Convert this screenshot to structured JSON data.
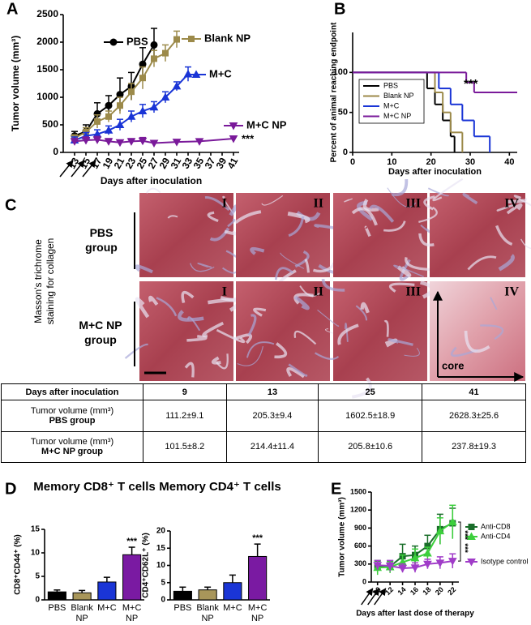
{
  "panel_labels": [
    "A",
    "B",
    "C",
    "D",
    "E"
  ],
  "chart_data": [
    {
      "type": "line",
      "y_label": "Tumor volume (mm³)",
      "x_label": "Days after inoculation",
      "xlim": [
        11,
        42
      ],
      "xticks": [
        13,
        15,
        17,
        19,
        21,
        23,
        25,
        27,
        29,
        31,
        33,
        35,
        37,
        39,
        41
      ],
      "ylim": [
        0,
        2500
      ],
      "yticks": [
        0,
        500,
        1000,
        1500,
        2000,
        2500
      ],
      "annotation": "***",
      "series": [
        {
          "name": "PBS",
          "color": "#000000",
          "marker": "circle",
          "x": [
            13,
            15,
            17,
            19,
            21,
            23,
            25,
            27
          ],
          "values": [
            300,
            380,
            700,
            850,
            1050,
            1200,
            1600,
            1950
          ],
          "errors": [
            80,
            120,
            200,
            180,
            300,
            250,
            300,
            300
          ]
        },
        {
          "name": "Blank NP",
          "color": "#9c8a4a",
          "marker": "square",
          "x": [
            13,
            15,
            17,
            19,
            21,
            23,
            25,
            27,
            29,
            31
          ],
          "values": [
            260,
            370,
            560,
            650,
            850,
            1100,
            1350,
            1700,
            1800,
            2050
          ],
          "errors": [
            60,
            80,
            120,
            100,
            150,
            150,
            200,
            150,
            150,
            150
          ]
        },
        {
          "name": "M+C",
          "color": "#1a35d6",
          "marker": "triangle-up",
          "x": [
            13,
            15,
            17,
            19,
            21,
            23,
            25,
            27,
            29,
            31,
            33
          ],
          "values": [
            220,
            300,
            330,
            400,
            500,
            650,
            750,
            820,
            1000,
            1200,
            1420
          ],
          "errors": [
            60,
            60,
            80,
            80,
            100,
            100,
            120,
            100,
            100,
            80,
            130
          ]
        },
        {
          "name": "M+C NP",
          "color": "#7a1a9a",
          "marker": "triangle-down",
          "x": [
            13,
            15,
            17,
            19,
            21,
            23,
            25,
            27,
            31,
            35,
            41
          ],
          "values": [
            200,
            220,
            230,
            200,
            180,
            200,
            210,
            170,
            190,
            200,
            250
          ],
          "errors": [
            50,
            60,
            60,
            50,
            40,
            50,
            60,
            40,
            40,
            40,
            30
          ]
        }
      ]
    },
    {
      "type": "step",
      "y_label": "Percent of animal reaching endpoint",
      "x_label": "Days after inoculation",
      "xlim": [
        0,
        42
      ],
      "xticks": [
        0,
        10,
        20,
        30,
        40
      ],
      "ylim": [
        0,
        150
      ],
      "yticks": [
        0,
        50,
        100
      ],
      "annotation": "***",
      "series": [
        {
          "name": "PBS",
          "color": "#000000",
          "x": [
            0,
            19,
            21,
            23,
            25,
            26
          ],
          "values": [
            100,
            80,
            60,
            40,
            20,
            0
          ]
        },
        {
          "name": "Blank NP",
          "color": "#9c8a4a",
          "x": [
            0,
            21,
            23,
            25,
            28
          ],
          "values": [
            100,
            75,
            50,
            25,
            0
          ]
        },
        {
          "name": "M+C",
          "color": "#1a35d6",
          "x": [
            0,
            22,
            25,
            28,
            31,
            35
          ],
          "values": [
            100,
            80,
            60,
            40,
            20,
            0
          ]
        },
        {
          "name": "M+C NP",
          "color": "#7a1a9a",
          "x": [
            0,
            29,
            31,
            42
          ],
          "values": [
            100,
            87.5,
            75,
            75
          ]
        }
      ]
    },
    {
      "type": "bar",
      "title": "Memory CD8⁺ T cells",
      "y_label": "CD8⁺CD44⁺ (%)",
      "categories": [
        "PBS",
        "Blank NP",
        "M+C",
        "M+C NP"
      ],
      "values": [
        1.7,
        1.5,
        3.8,
        9.6
      ],
      "errors": [
        0.4,
        0.5,
        1.0,
        1.6
      ],
      "colors": [
        "#000000",
        "#a8965a",
        "#1a35d6",
        "#7a1aa2"
      ],
      "ylim": [
        0,
        15
      ],
      "yticks": [
        0,
        5,
        10,
        15
      ],
      "annotation": "***"
    },
    {
      "type": "bar",
      "title": "Memory CD4⁺ T cells",
      "y_label": "CD4⁺CD62L⁺ (%)",
      "categories": [
        "PBS",
        "Blank NP",
        "M+C",
        "M+C NP"
      ],
      "values": [
        2.5,
        2.9,
        5.0,
        12.6
      ],
      "errors": [
        1.2,
        0.8,
        2.2,
        3.6
      ],
      "colors": [
        "#000000",
        "#a8965a",
        "#1a35d6",
        "#7a1aa2"
      ],
      "ylim": [
        0,
        20
      ],
      "yticks": [
        0,
        5,
        10,
        15,
        20
      ],
      "annotation": "***"
    },
    {
      "type": "line",
      "y_label": "Tumor volume (mm³)",
      "x_label": "Days after last dose of therapy",
      "xlim": [
        9,
        23
      ],
      "xticks": [
        10,
        12,
        14,
        16,
        18,
        20,
        22
      ],
      "ylim": [
        0,
        1500
      ],
      "yticks": [
        0,
        300,
        600,
        900,
        1200,
        1500
      ],
      "x": [
        10,
        12,
        14,
        16,
        18,
        20,
        22
      ],
      "annotations": [
        "***",
        "***"
      ],
      "series": [
        {
          "name": "Anti-CD8",
          "color": "#1a6e2a",
          "marker": "square",
          "values": [
            250,
            260,
            430,
            450,
            600,
            880,
            980
          ],
          "errors": [
            100,
            80,
            200,
            150,
            180,
            250,
            250
          ]
        },
        {
          "name": "Anti-CD4",
          "color": "#3ccf3c",
          "marker": "triangle-up",
          "values": [
            240,
            250,
            330,
            400,
            480,
            850,
            1000
          ],
          "errors": [
            120,
            100,
            120,
            150,
            100,
            220,
            280
          ]
        },
        {
          "name": "Isotype control",
          "color": "#a03cc8",
          "marker": "triangle-down",
          "values": [
            280,
            270,
            230,
            240,
            300,
            320,
            350
          ],
          "errors": [
            80,
            90,
            70,
            80,
            80,
            100,
            120
          ]
        }
      ]
    }
  ],
  "micrographs": {
    "stain_label": "Masson's trichrome staining for collagen",
    "groups": [
      "PBS group",
      "M+C NP group"
    ],
    "numerals": [
      "I",
      "II",
      "III",
      "IV"
    ],
    "core_label": "core"
  },
  "table": {
    "header": [
      "Days after inoculation",
      "9",
      "13",
      "25",
      "41"
    ],
    "rows": [
      {
        "label": "Tumor volume (mm³)",
        "group": "PBS group",
        "cells": [
          "111.2±9.1",
          "205.3±9.4",
          "1602.5±18.9",
          "2628.3±25.6"
        ]
      },
      {
        "label": "Tumor volume (mm³)",
        "group": "M+C NP group",
        "cells": [
          "101.5±8.2",
          "214.4±11.4",
          "205.8±10.6",
          "237.8±19.3"
        ]
      }
    ]
  }
}
